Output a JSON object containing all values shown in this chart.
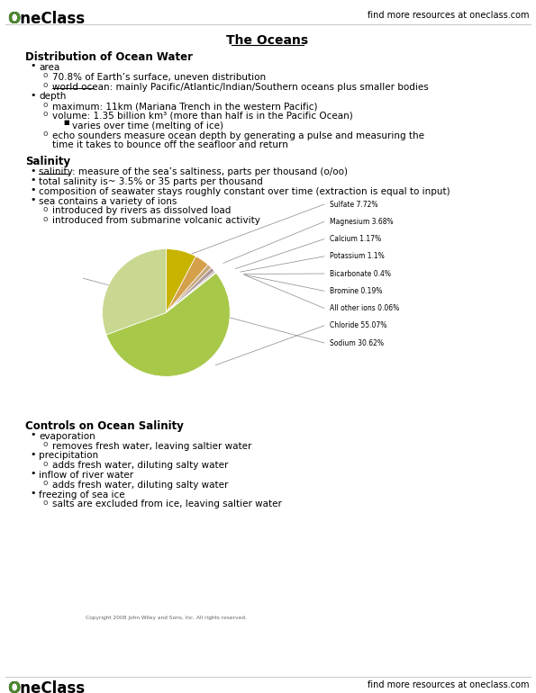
{
  "title": "The Oceans",
  "header_right": "find more resources at oneclass.com",
  "footer_right": "find more resources at oneclass.com",
  "sections": [
    {
      "heading": "Distribution of Ocean Water",
      "bullets": [
        {
          "level": 1,
          "text": "area",
          "children": [
            {
              "level": 2,
              "text": "70.8% of Earth’s surface, uneven distribution"
            },
            {
              "level": 2,
              "text": "world ocean: mainly Pacific/Atlantic/Indian/Southern oceans plus smaller bodies",
              "underline_word": "world ocean"
            }
          ]
        },
        {
          "level": 1,
          "text": "depth",
          "children": [
            {
              "level": 2,
              "text": "maximum: 11km (Mariana Trench in the western Pacific)"
            },
            {
              "level": 2,
              "text": "volume: 1.35 billion km³ (more than half is in the Pacific Ocean)",
              "children": [
                {
                  "level": 3,
                  "text": "varies over time (melting of ice)"
                }
              ]
            },
            {
              "level": 2,
              "text": "echo sounders measure ocean depth by generating a pulse and measuring the",
              "line2": "time it takes to bounce off the seafloor and return"
            }
          ]
        }
      ]
    },
    {
      "heading": "Salinity",
      "bullets": [
        {
          "level": 1,
          "text": "salinity: measure of the sea’s saltiness, parts per thousand (o/oo)",
          "underline_word": "salinity"
        },
        {
          "level": 1,
          "text": "total salinity is~ 3.5% or 35 parts per thousand"
        },
        {
          "level": 1,
          "text": "composition of seawater stays roughly constant over time (extraction is equal to input)"
        },
        {
          "level": 1,
          "text": "sea contains a variety of ions",
          "children": [
            {
              "level": 2,
              "text": "introduced by rivers as dissolved load"
            },
            {
              "level": 2,
              "text": "introduced from submarine volcanic activity"
            }
          ]
        }
      ]
    },
    {
      "heading": "Controls on Ocean Salinity",
      "bullets": [
        {
          "level": 1,
          "text": "evaporation",
          "children": [
            {
              "level": 2,
              "text": "removes fresh water, leaving saltier water"
            }
          ]
        },
        {
          "level": 1,
          "text": "precipitation",
          "children": [
            {
              "level": 2,
              "text": "adds fresh water, diluting salty water"
            }
          ]
        },
        {
          "level": 1,
          "text": "inflow of river water",
          "children": [
            {
              "level": 2,
              "text": "adds fresh water, diluting salty water"
            }
          ]
        },
        {
          "level": 1,
          "text": "freezing of sea ice",
          "children": [
            {
              "level": 2,
              "text": "salts are excluded from ice, leaving saltier water"
            }
          ]
        }
      ]
    }
  ],
  "pie_chart": {
    "labels": [
      "Sulfate 7.72%",
      "Magnesium 3.68%",
      "Calcium 1.17%",
      "Potassium 1.1%",
      "Bicarbonate 0.4%",
      "Bromine 0.19%",
      "All other ions 0.06%",
      "Chloride 55.07%",
      "Sodium 30.62%"
    ],
    "values": [
      7.72,
      3.68,
      1.17,
      1.1,
      0.4,
      0.19,
      0.06,
      55.07,
      30.62
    ],
    "colors": [
      "#c8b400",
      "#d4a04a",
      "#c8a87a",
      "#b09898",
      "#a8a0a0",
      "#c8c0b8",
      "#b8b0a8",
      "#a8c84a",
      "#c8d890"
    ],
    "copyright": "Copyright 2008 John Wiley and Sons, Inc. All rights reserved.",
    "startangle": 90
  }
}
